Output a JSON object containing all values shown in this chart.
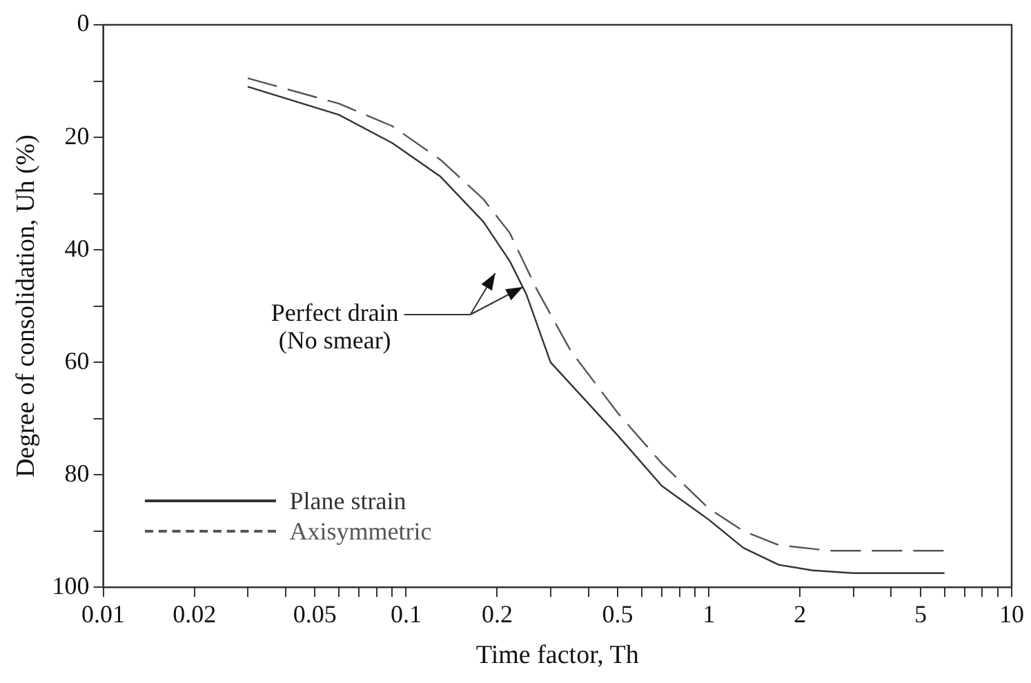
{
  "chart_data": {
    "type": "line",
    "xlabel": "Time factor, Th",
    "ylabel": "Degree of consolidation, Uh (%)",
    "log": "x",
    "grid": false,
    "legend": "bottom left",
    "marker": "none",
    "xlim": [
      0.01,
      10
    ],
    "xticks": [
      0.01,
      0.02,
      {
        "value": 0.03,
        "label": null
      },
      {
        "value": 0.04,
        "label": null
      },
      0.05,
      {
        "value": 0.06,
        "label": null
      },
      {
        "value": 0.07,
        "label": null
      },
      {
        "value": 0.08,
        "label": null
      },
      {
        "value": 0.09,
        "label": null
      },
      0.1,
      0.2,
      {
        "value": 0.3,
        "label": null
      },
      {
        "value": 0.4,
        "label": null
      },
      0.5,
      {
        "value": 0.6,
        "label": null
      },
      {
        "value": 0.7,
        "label": null
      },
      {
        "value": 0.8,
        "label": null
      },
      {
        "value": 0.9,
        "label": null
      },
      1,
      2,
      {
        "value": 3,
        "label": null
      },
      {
        "value": 4,
        "label": null
      },
      5,
      {
        "value": 6,
        "label": null
      },
      {
        "value": 7,
        "label": null
      },
      {
        "value": 8,
        "label": null
      },
      {
        "value": 9,
        "label": null
      },
      10
    ],
    "ylim": [
      100,
      0
    ],
    "yticks": [
      0,
      {
        "value": 10,
        "label": null
      },
      20,
      {
        "value": 30,
        "label": null
      },
      40,
      {
        "value": 50,
        "label": null
      },
      60,
      {
        "value": 70,
        "label": null
      },
      80,
      {
        "value": 90,
        "label": null
      },
      100
    ],
    "annotations": [
      "Perfect drain\n(No smear)"
    ],
    "series": [
      {
        "name": "Plane strain",
        "color": "#333333",
        "line_style": "solid",
        "x": [
          0.03,
          0.06,
          0.09,
          0.13,
          0.18,
          0.22,
          0.25,
          0.3,
          0.5,
          0.7,
          1,
          1.3,
          1.7,
          2.2,
          3,
          6
        ],
        "values": [
          11,
          16,
          21,
          27,
          35,
          42,
          48,
          60,
          73,
          82,
          88,
          93,
          96,
          97,
          97.5,
          97.5
        ]
      },
      {
        "name": "Axisymmetric",
        "color": "#555555",
        "line_style": "dashed",
        "x": [
          0.03,
          0.06,
          0.09,
          0.13,
          0.18,
          0.22,
          0.27,
          0.35,
          0.5,
          0.7,
          1,
          1.3,
          1.7,
          2.5,
          6
        ],
        "values": [
          9.5,
          14,
          18,
          24,
          31,
          37,
          47,
          58,
          69,
          78,
          86,
          90,
          92.5,
          93.5,
          93.5
        ]
      }
    ]
  }
}
